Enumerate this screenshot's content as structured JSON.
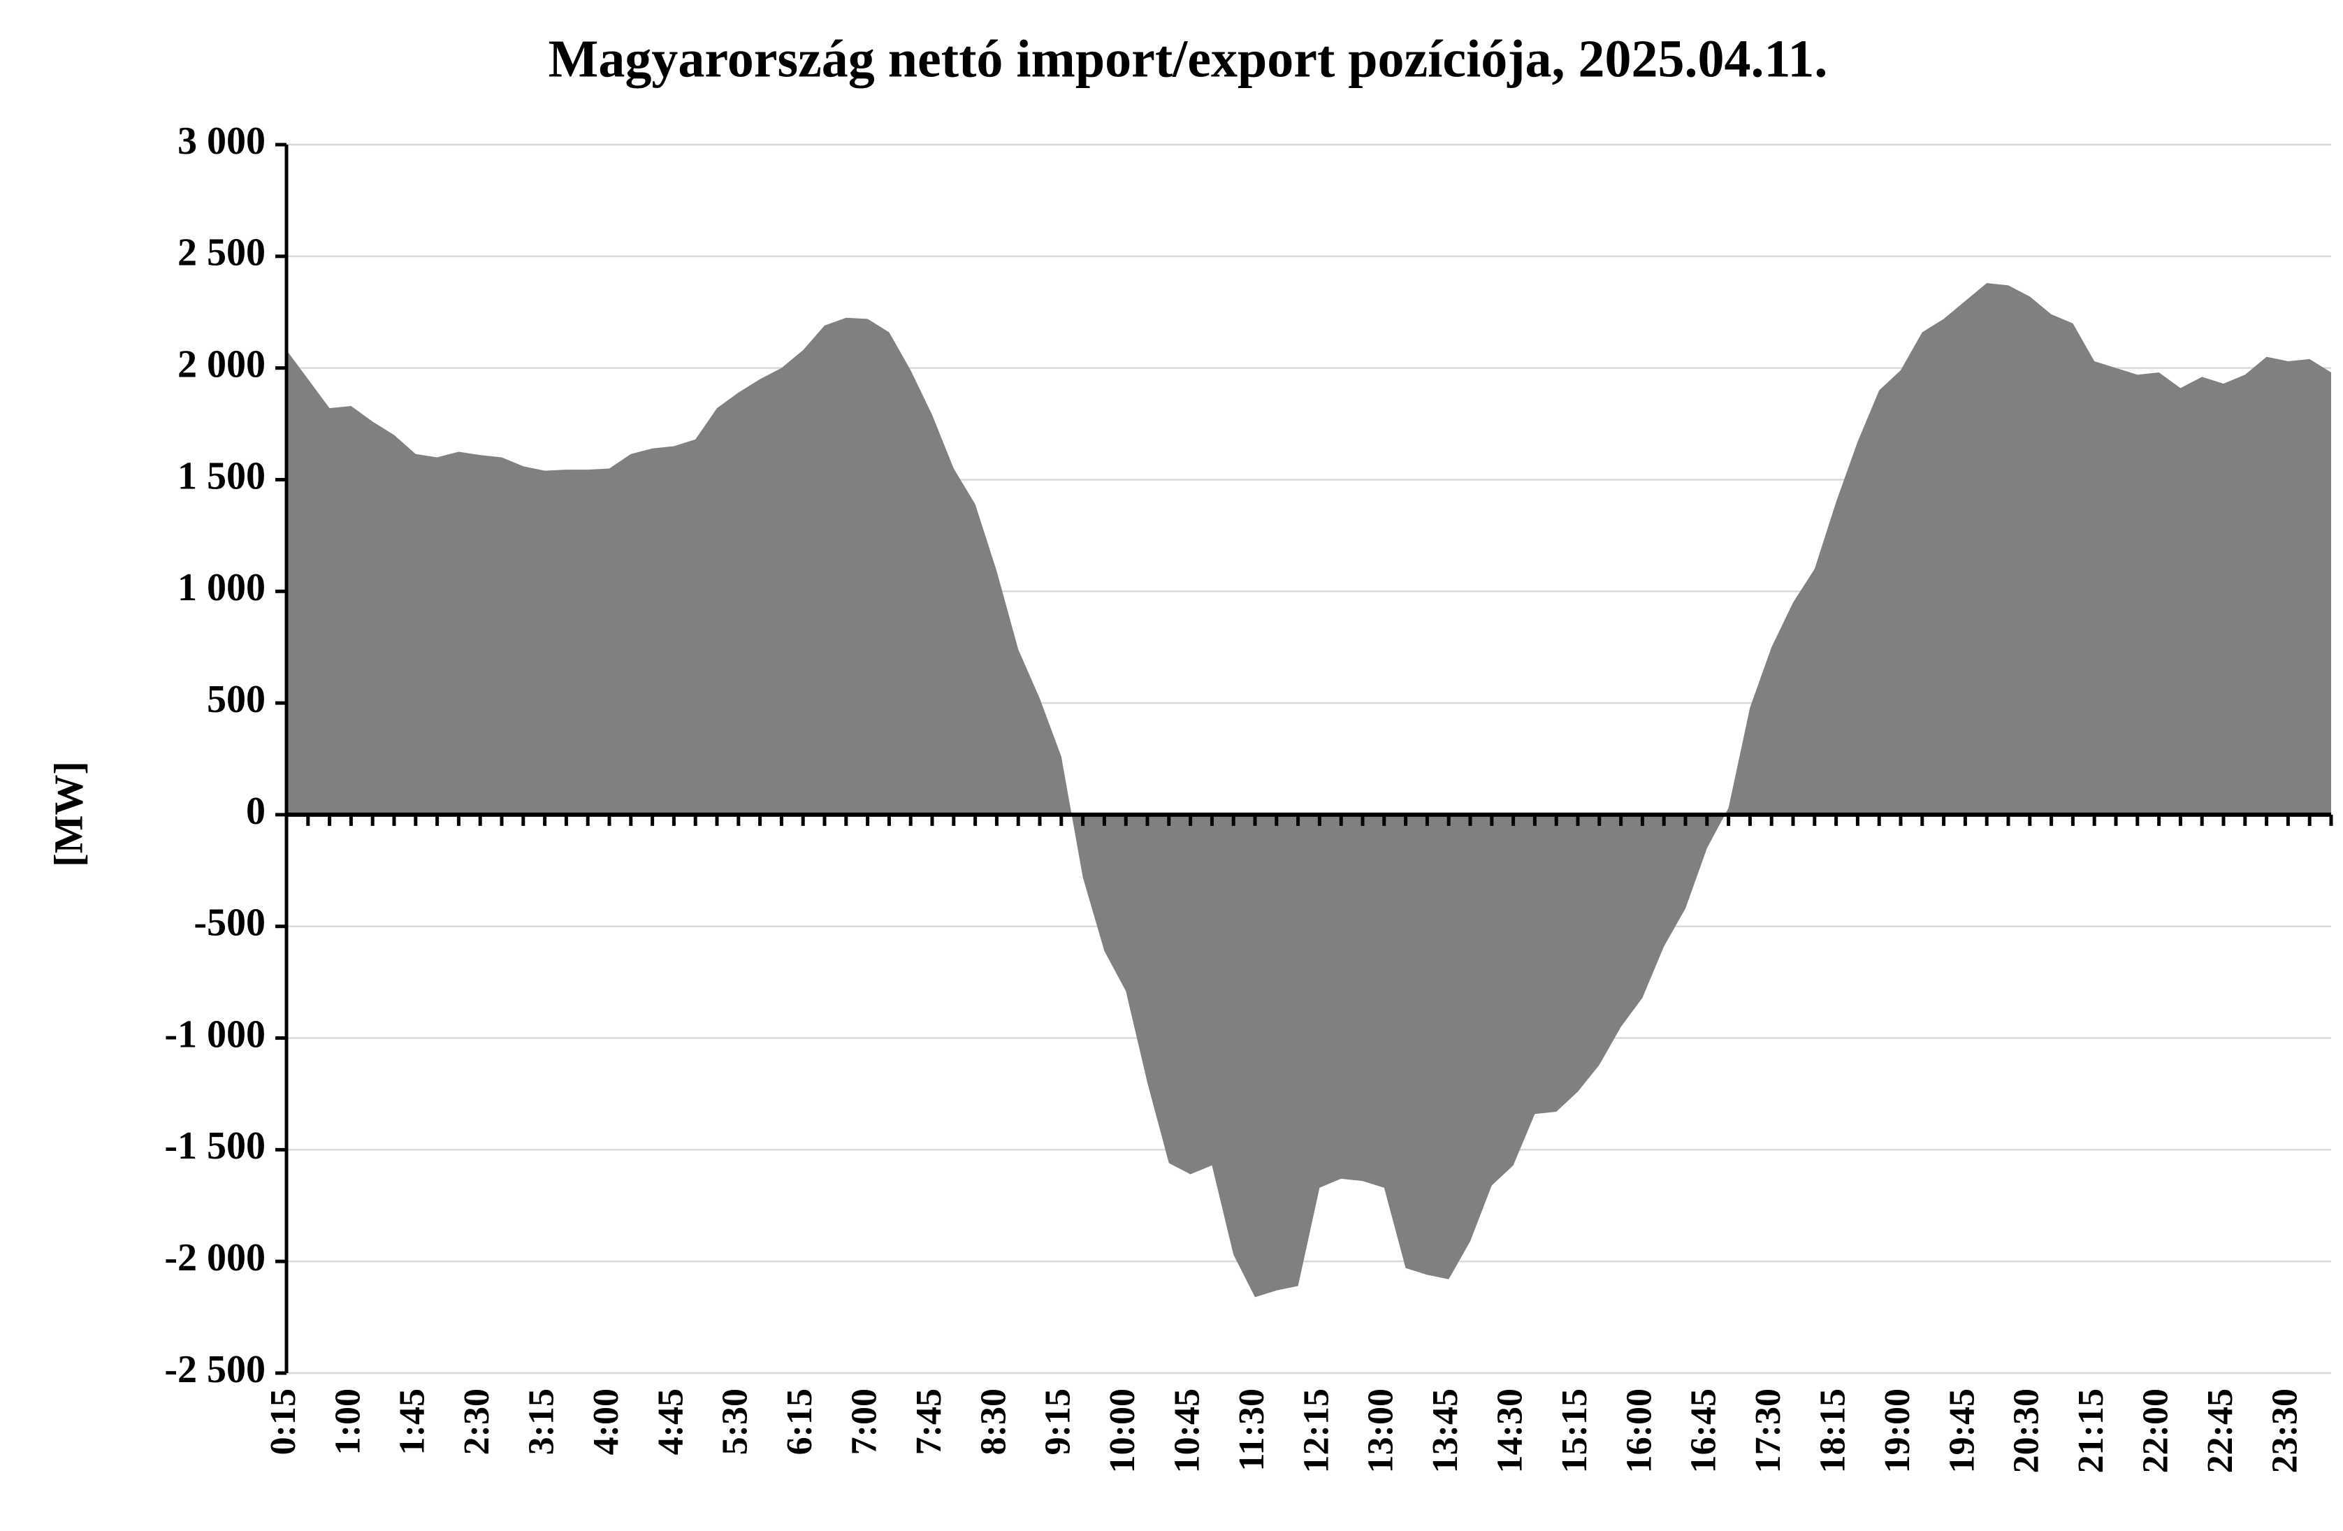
{
  "chart_data": {
    "type": "area",
    "title": "Magyarország nettó import/export pozíciója, 2025.04.11.",
    "y_label": "[MW]",
    "color": "#808080",
    "grid": true,
    "categories": [
      "0:15",
      null,
      null,
      "1:00",
      null,
      null,
      "1:45",
      null,
      null,
      "2:30",
      null,
      null,
      "3:15",
      null,
      null,
      "4:00",
      null,
      null,
      "4:45",
      null,
      null,
      "5:30",
      null,
      null,
      "6:15",
      null,
      null,
      "7:00",
      null,
      null,
      "7:45",
      null,
      null,
      "8:30",
      null,
      null,
      "9:15",
      null,
      null,
      "10:00",
      null,
      null,
      "10:45",
      null,
      null,
      "11:30",
      null,
      null,
      "12:15",
      null,
      null,
      "13:00",
      null,
      null,
      "13:45",
      null,
      null,
      "14:30",
      null,
      null,
      "15:15",
      null,
      null,
      "16:00",
      null,
      null,
      "16:45",
      null,
      null,
      "17:30",
      null,
      null,
      "18:15",
      null,
      null,
      "19:00",
      null,
      null,
      "19:45",
      null,
      null,
      "20:30",
      null,
      null,
      "21:15",
      null,
      null,
      "22:00",
      null,
      null,
      "22:45",
      null,
      null,
      "23:30",
      null,
      null
    ],
    "values": [
      2080,
      1950,
      1820,
      1830,
      1760,
      1700,
      1615,
      1600,
      1625,
      1610,
      1600,
      1560,
      1540,
      1545,
      1545,
      1550,
      1615,
      1640,
      1650,
      1680,
      1820,
      1890,
      1950,
      2000,
      2080,
      2190,
      2225,
      2220,
      2160,
      1990,
      1790,
      1550,
      1390,
      1090,
      740,
      520,
      260,
      -280,
      -610,
      -790,
      -1200,
      -1560,
      -1610,
      -1570,
      -1970,
      -2160,
      -2130,
      -2110,
      -1670,
      -1630,
      -1640,
      -1670,
      -2030,
      -2060,
      -2080,
      -1910,
      -1660,
      -1570,
      -1340,
      -1330,
      -1240,
      -1120,
      -950,
      -820,
      -590,
      -420,
      -150,
      30,
      480,
      750,
      950,
      1100,
      1400,
      1670,
      1900,
      1990,
      2160,
      2220,
      2300,
      2380,
      2370,
      2320,
      2240,
      2200,
      2030,
      2000,
      1970,
      1980,
      1910,
      1960,
      1930,
      1970,
      2050,
      2030,
      2040,
      1980
    ],
    "ylim": [
      -2500,
      3000
    ],
    "yticks": [
      {
        "value": -2500,
        "label": "-2 500"
      },
      {
        "value": -2000,
        "label": "-2 000"
      },
      {
        "value": -1500,
        "label": "-1 500"
      },
      {
        "value": -1000,
        "label": "-1 000"
      },
      -500,
      0,
      500,
      {
        "value": 1000,
        "label": "1 000"
      },
      {
        "value": 1500,
        "label": "1 500"
      },
      {
        "value": 2000,
        "label": "2 000"
      },
      {
        "value": 2500,
        "label": "2 500"
      },
      {
        "value": 3000,
        "label": "3 000"
      }
    ]
  }
}
